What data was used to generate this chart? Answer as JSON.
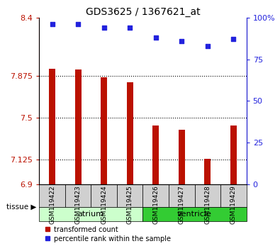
{
  "title": "GDS3625 / 1367621_at",
  "samples": [
    "GSM119422",
    "GSM119423",
    "GSM119424",
    "GSM119425",
    "GSM119426",
    "GSM119427",
    "GSM119428",
    "GSM119429"
  ],
  "bar_values": [
    7.94,
    7.93,
    7.86,
    7.82,
    7.43,
    7.39,
    7.13,
    7.43
  ],
  "dot_values": [
    96,
    96,
    94,
    94,
    88,
    86,
    83,
    87
  ],
  "ylim_left": [
    6.9,
    8.4
  ],
  "ylim_right": [
    0,
    100
  ],
  "yticks_left": [
    6.9,
    7.125,
    7.5,
    7.875,
    8.4
  ],
  "yticks_right": [
    0,
    25,
    50,
    75,
    100
  ],
  "ytick_labels_left": [
    "6.9",
    "7.125",
    "7.5",
    "7.875",
    "8.4"
  ],
  "ytick_labels_right": [
    "0",
    "25",
    "50",
    "75",
    "100%"
  ],
  "bar_color": "#bb1100",
  "dot_color": "#2222dd",
  "bg_color": "#ffffff",
  "bar_width": 0.25,
  "baseline": 6.9,
  "atrium_color_light": "#ccffcc",
  "atrium_color_dark": "#55dd55",
  "ventricle_color": "#33cc33",
  "sample_box_color": "#d0d0d0"
}
